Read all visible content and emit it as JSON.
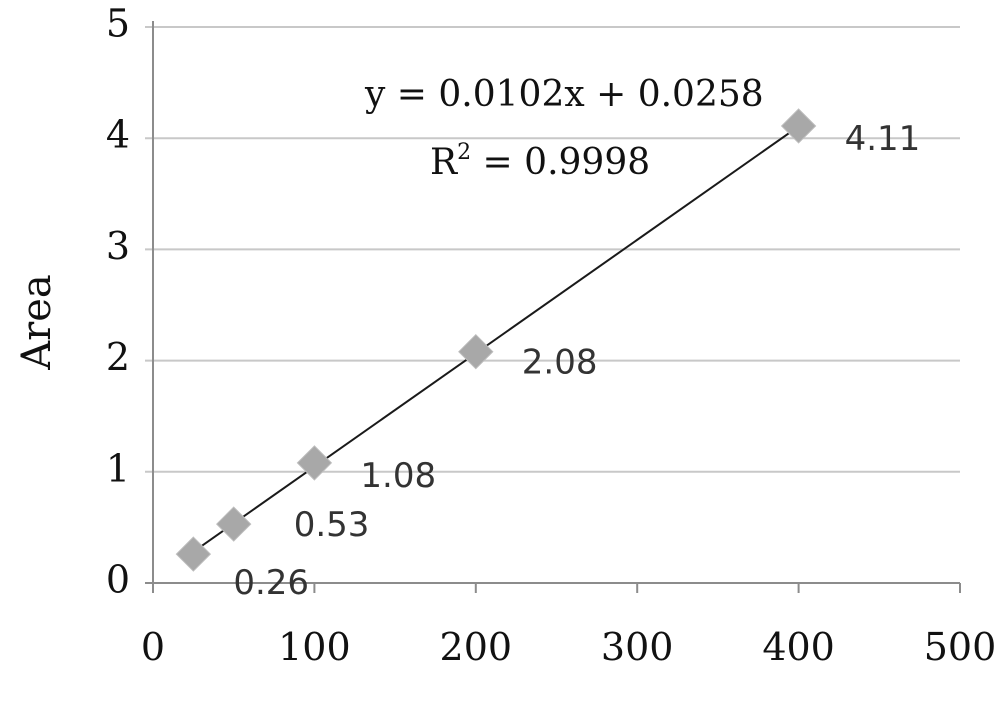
{
  "chart_data": {
    "type": "scatter",
    "title": "",
    "xlabel": "",
    "ylabel": "Area",
    "xlim": [
      0,
      500
    ],
    "ylim": [
      0,
      5
    ],
    "x_ticks": [
      "0",
      "100",
      "200",
      "300",
      "400",
      "500"
    ],
    "y_ticks": [
      "0",
      "1",
      "2",
      "3",
      "4",
      "5"
    ],
    "grid": "horizontal",
    "legend": "none",
    "series": [
      {
        "x": [
          25,
          50,
          100,
          200,
          400
        ],
        "y": [
          0.26,
          0.53,
          1.08,
          2.08,
          4.11
        ],
        "labels": [
          "0.26",
          "0.53",
          "1.08",
          "2.08",
          "4.11"
        ],
        "marker": "diamond",
        "color": "#a8a8a8"
      }
    ],
    "trendline": {
      "slope": 0.0102,
      "intercept": 0.0258,
      "equation": "y = 0.0102x + 0.0258",
      "r2_prefix": "R",
      "r2_sup": "2",
      "r2_value": " = 0.9998",
      "color": "#1a1a1a"
    },
    "colors": {
      "grid": "#c8c8c8",
      "axis": "#8c8c8c"
    }
  }
}
